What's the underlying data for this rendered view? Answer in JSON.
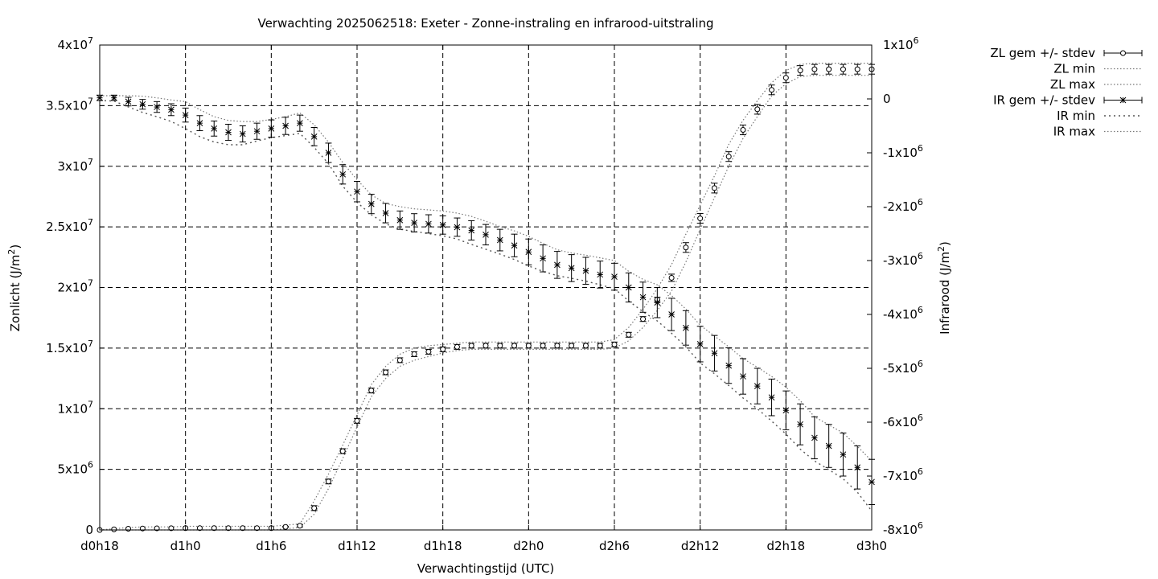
{
  "chart_data": {
    "type": "line",
    "title": "Verwachting 2025062518: Exeter - Zonne-instraling en infrarood-uitstraling",
    "xlabel": "Verwachtingstijd (UTC)",
    "ylabel": "Zonlicht (J/m²)",
    "y2label": "Infrarood (J/m²)",
    "x_range": [
      18,
      72
    ],
    "x_ticks": [
      18,
      24,
      30,
      36,
      42,
      48,
      54,
      60,
      66,
      72
    ],
    "x_tick_labels": [
      "d0h18",
      "d1h0",
      "d1h6",
      "d1h12",
      "d1h18",
      "d2h0",
      "d2h6",
      "d2h12",
      "d2h18",
      "d3h0"
    ],
    "ylim": [
      0,
      40000000
    ],
    "y_ticks": [
      0,
      5000000,
      10000000,
      15000000,
      20000000,
      25000000,
      30000000,
      35000000,
      40000000
    ],
    "y_tick_labels": [
      {
        "base": "0",
        "exp": ""
      },
      {
        "base": "5x10",
        "exp": "6"
      },
      {
        "base": "1x10",
        "exp": "7"
      },
      {
        "base": "1.5x10",
        "exp": "7"
      },
      {
        "base": "2x10",
        "exp": "7"
      },
      {
        "base": "2.5x10",
        "exp": "7"
      },
      {
        "base": "3x10",
        "exp": "7"
      },
      {
        "base": "3.5x10",
        "exp": "7"
      },
      {
        "base": "4x10",
        "exp": "7"
      }
    ],
    "y2lim": [
      -8000000,
      1000000
    ],
    "y2_ticks": [
      -8000000,
      -7000000,
      -6000000,
      -5000000,
      -4000000,
      -3000000,
      -2000000,
      -1000000,
      0,
      1000000
    ],
    "y2_tick_labels": [
      {
        "base": "-8x10",
        "exp": "6"
      },
      {
        "base": "-7x10",
        "exp": "6"
      },
      {
        "base": "-6x10",
        "exp": "6"
      },
      {
        "base": "-5x10",
        "exp": "6"
      },
      {
        "base": "-4x10",
        "exp": "6"
      },
      {
        "base": "-3x10",
        "exp": "6"
      },
      {
        "base": "-2x10",
        "exp": "6"
      },
      {
        "base": "-1x10",
        "exp": "6"
      },
      {
        "base": "0",
        "exp": ""
      },
      {
        "base": "1x10",
        "exp": "6"
      }
    ],
    "grid": true,
    "legend_position": "top-right, outside plot",
    "x": [
      18,
      19,
      20,
      21,
      22,
      23,
      24,
      25,
      26,
      27,
      28,
      29,
      30,
      31,
      32,
      33,
      34,
      35,
      36,
      37,
      38,
      39,
      40,
      41,
      42,
      43,
      44,
      45,
      46,
      47,
      48,
      49,
      50,
      51,
      52,
      53,
      54,
      55,
      56,
      57,
      58,
      59,
      60,
      61,
      62,
      63,
      64,
      65,
      66,
      67,
      68,
      69,
      70,
      71,
      72
    ],
    "series": [
      {
        "name": "ZL gem +/- stdev",
        "axis": "y1",
        "marker": "circle",
        "mean": [
          0,
          50000,
          100000,
          120000,
          130000,
          140000,
          150000,
          150000,
          150000,
          150000,
          150000,
          150000,
          150000,
          250000,
          350000,
          1800000,
          4000000,
          6500000,
          9000000,
          11500000,
          13000000,
          14000000,
          14500000,
          14700000,
          14900000,
          15100000,
          15200000,
          15200000,
          15200000,
          15200000,
          15200000,
          15200000,
          15200000,
          15200000,
          15200000,
          15200000,
          15300000,
          16100000,
          17400000,
          19000000,
          20800000,
          23300000,
          25700000,
          28200000,
          30800000,
          33000000,
          34700000,
          36300000,
          37300000,
          37900000,
          38000000,
          38000000,
          38000000,
          38000000,
          38000000
        ],
        "stdev": [
          0,
          30000,
          30000,
          30000,
          30000,
          30000,
          30000,
          30000,
          30000,
          30000,
          30000,
          30000,
          30000,
          50000,
          100000,
          200000,
          200000,
          200000,
          200000,
          200000,
          200000,
          200000,
          200000,
          200000,
          200000,
          200000,
          200000,
          200000,
          200000,
          200000,
          200000,
          200000,
          200000,
          200000,
          200000,
          200000,
          200000,
          200000,
          200000,
          200000,
          300000,
          400000,
          400000,
          400000,
          400000,
          400000,
          400000,
          400000,
          400000,
          400000,
          400000,
          400000,
          400000,
          400000,
          400000
        ]
      },
      {
        "name": "ZL min",
        "axis": "y1",
        "values": [
          0,
          0,
          0,
          0,
          0,
          0,
          0,
          0,
          0,
          0,
          0,
          0,
          0,
          100000,
          200000,
          1300000,
          3400000,
          5900000,
          8500000,
          11000000,
          12500000,
          13500000,
          14000000,
          14300000,
          14600000,
          14800000,
          14900000,
          14900000,
          14900000,
          14900000,
          14900000,
          14900000,
          14900000,
          14900000,
          14900000,
          14900000,
          15000000,
          15600000,
          16700000,
          18100000,
          19700000,
          22100000,
          24800000,
          27400000,
          30000000,
          32300000,
          34100000,
          35800000,
          36800000,
          37400000,
          37500000,
          37500000,
          37500000,
          37500000,
          37500000
        ]
      },
      {
        "name": "ZL max",
        "axis": "y1",
        "values": [
          0,
          100000,
          200000,
          250000,
          250000,
          250000,
          300000,
          300000,
          300000,
          300000,
          300000,
          300000,
          300000,
          400000,
          500000,
          2400000,
          4600000,
          7000000,
          9500000,
          12000000,
          13500000,
          14500000,
          15000000,
          15200000,
          15300000,
          15400000,
          15500000,
          15500000,
          15500000,
          15500000,
          15500000,
          15500000,
          15500000,
          15500000,
          15500000,
          15500000,
          15700000,
          16700000,
          18200000,
          19900000,
          21900000,
          24400000,
          26800000,
          29200000,
          31800000,
          33800000,
          35400000,
          36900000,
          37900000,
          38400000,
          38500000,
          38500000,
          38500000,
          38500000,
          38500000
        ]
      },
      {
        "name": "IR gem +/- stdev",
        "axis": "y2",
        "marker": "star",
        "mean": [
          20000,
          20000,
          -50000,
          -100000,
          -150000,
          -200000,
          -300000,
          -450000,
          -550000,
          -620000,
          -650000,
          -600000,
          -550000,
          -500000,
          -450000,
          -700000,
          -1000000,
          -1400000,
          -1720000,
          -1950000,
          -2120000,
          -2250000,
          -2300000,
          -2320000,
          -2340000,
          -2380000,
          -2440000,
          -2520000,
          -2620000,
          -2720000,
          -2840000,
          -2960000,
          -3080000,
          -3140000,
          -3190000,
          -3260000,
          -3300000,
          -3500000,
          -3680000,
          -3780000,
          -4000000,
          -4250000,
          -4550000,
          -4720000,
          -4950000,
          -5150000,
          -5330000,
          -5540000,
          -5780000,
          -6040000,
          -6290000,
          -6440000,
          -6600000,
          -6840000,
          -7110000
        ],
        "stdev": [
          50000,
          50000,
          80000,
          90000,
          100000,
          110000,
          130000,
          140000,
          140000,
          150000,
          150000,
          150000,
          160000,
          160000,
          150000,
          170000,
          180000,
          180000,
          190000,
          180000,
          180000,
          170000,
          170000,
          170000,
          170000,
          170000,
          180000,
          190000,
          200000,
          210000,
          240000,
          250000,
          250000,
          250000,
          250000,
          250000,
          250000,
          270000,
          280000,
          280000,
          300000,
          320000,
          330000,
          330000,
          330000,
          330000,
          330000,
          340000,
          360000,
          380000,
          390000,
          400000,
          400000,
          400000,
          420000
        ]
      },
      {
        "name": "IR min",
        "axis": "y2",
        "values": [
          -30000,
          -40000,
          -150000,
          -250000,
          -330000,
          -420000,
          -550000,
          -700000,
          -800000,
          -850000,
          -850000,
          -780000,
          -720000,
          -680000,
          -640000,
          -900000,
          -1200000,
          -1620000,
          -1920000,
          -2150000,
          -2320000,
          -2420000,
          -2460000,
          -2500000,
          -2540000,
          -2600000,
          -2700000,
          -2790000,
          -2880000,
          -2980000,
          -3100000,
          -3200000,
          -3280000,
          -3330000,
          -3380000,
          -3450000,
          -3520000,
          -3750000,
          -3950000,
          -4120000,
          -4350000,
          -4600000,
          -4900000,
          -5100000,
          -5320000,
          -5550000,
          -5750000,
          -5980000,
          -6220000,
          -6500000,
          -6720000,
          -6880000,
          -7050000,
          -7300000,
          -7650000
        ]
      },
      {
        "name": "IR max",
        "axis": "y2",
        "values": [
          60000,
          60000,
          60000,
          50000,
          20000,
          -20000,
          -50000,
          -200000,
          -330000,
          -400000,
          -420000,
          -420000,
          -380000,
          -330000,
          -260000,
          -480000,
          -800000,
          -1180000,
          -1500000,
          -1780000,
          -1940000,
          -2000000,
          -2040000,
          -2060000,
          -2080000,
          -2120000,
          -2180000,
          -2270000,
          -2370000,
          -2450000,
          -2550000,
          -2680000,
          -2800000,
          -2860000,
          -2900000,
          -2950000,
          -3000000,
          -3200000,
          -3350000,
          -3450000,
          -3650000,
          -3900000,
          -4200000,
          -4400000,
          -4600000,
          -4820000,
          -4980000,
          -5150000,
          -5350000,
          -5600000,
          -5900000,
          -6050000,
          -6200000,
          -6450000,
          -6720000
        ]
      }
    ]
  }
}
